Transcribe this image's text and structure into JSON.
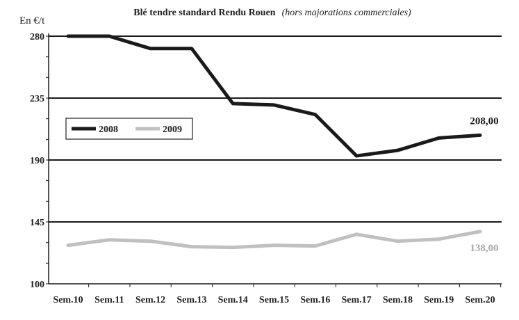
{
  "chart_data": {
    "type": "line",
    "title": "Blé tendre standard Rendu Rouen",
    "subtitle": "(hors majorations commerciales)",
    "unit": "En €/t",
    "categories": [
      "Sem.10",
      "Sem.11",
      "Sem.12",
      "Sem.13",
      "Sem.14",
      "Sem.15",
      "Sem.16",
      "Sem.17",
      "Sem.18",
      "Sem.19",
      "Sem.20"
    ],
    "yticks": [
      "100",
      "145",
      "190",
      "235",
      "280"
    ],
    "ylim": [
      100,
      280
    ],
    "grid": true,
    "legend_position": "upper-left",
    "series": [
      {
        "name": "2008",
        "color": "#1a1a1a",
        "values": [
          280,
          280,
          271,
          271,
          231,
          230,
          223,
          193,
          197,
          206,
          208
        ]
      },
      {
        "name": "2009",
        "color": "#c0c0c0",
        "values": [
          128,
          132,
          131,
          127,
          126.5,
          128,
          127.5,
          136,
          131,
          132.5,
          138
        ]
      }
    ],
    "annotations": [
      {
        "text": "208,00",
        "series": 0,
        "index": 10,
        "color": "#1a1a1a"
      },
      {
        "text": "138,00",
        "series": 1,
        "index": 10,
        "color": "#a8a8a8"
      }
    ]
  }
}
